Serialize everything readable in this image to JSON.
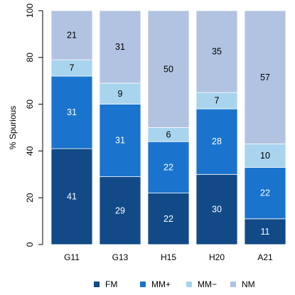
{
  "chart_data": {
    "type": "bar",
    "stacked": true,
    "categories": [
      "G11",
      "G13",
      "H15",
      "H20",
      "A21"
    ],
    "series": [
      {
        "name": "FM",
        "color": "#114a87",
        "label_color": "#ffffff",
        "values": [
          41,
          29,
          22,
          30,
          11
        ]
      },
      {
        "name": "MM+",
        "color": "#1a74cd",
        "label_color": "#ffffff",
        "values": [
          31,
          31,
          22,
          28,
          22
        ]
      },
      {
        "name": "MM−",
        "color": "#a8d4ee",
        "label_color": "#000000",
        "values": [
          7,
          9,
          6,
          7,
          10
        ]
      },
      {
        "name": "NM",
        "color": "#b1c3e0",
        "label_color": "#000000",
        "values": [
          21,
          31,
          50,
          35,
          57
        ]
      }
    ],
    "title": "",
    "xlabel": "",
    "ylabel": "% Spurious",
    "ylim": [
      0,
      100
    ],
    "yticks": [
      0,
      20,
      40,
      60,
      80,
      100
    ],
    "grid": false,
    "legend_position": "bottom"
  }
}
